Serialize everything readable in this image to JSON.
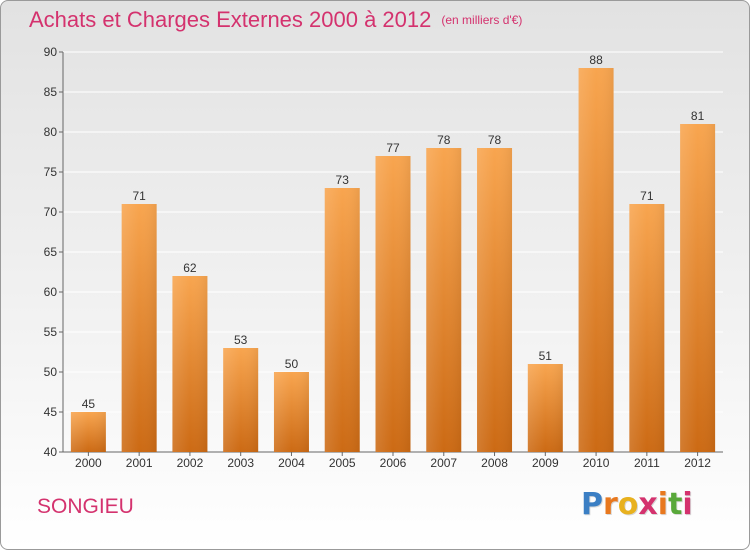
{
  "header": {
    "title": "Achats et Charges Externes 2000 à 2012",
    "unit": "(en milliers d'€)"
  },
  "commune": "SONGIEU",
  "logo": {
    "text": "Proxiti",
    "letters": [
      "P",
      "r",
      "o",
      "x",
      "i",
      "t",
      "i"
    ],
    "colors": [
      "#3b7fc4",
      "#e8781e",
      "#e8b11e",
      "#d4326e",
      "#e8781e",
      "#59a83a",
      "#d4326e"
    ]
  },
  "chart_data": {
    "type": "bar",
    "title": "Achats et Charges Externes 2000 à 2012",
    "categories": [
      "2000",
      "2001",
      "2002",
      "2003",
      "2004",
      "2005",
      "2006",
      "2007",
      "2008",
      "2009",
      "2010",
      "2011",
      "2012"
    ],
    "values": [
      45,
      71,
      62,
      53,
      50,
      73,
      77,
      78,
      78,
      51,
      88,
      71,
      81
    ],
    "ylim": [
      40,
      90
    ],
    "yticks": [
      40,
      45,
      50,
      55,
      60,
      65,
      70,
      75,
      80,
      85,
      90
    ],
    "grid": true,
    "colors": {
      "bar_light": "#f8a54f",
      "bar_dark": "#cc6a14",
      "grid": "#ffffff"
    }
  }
}
